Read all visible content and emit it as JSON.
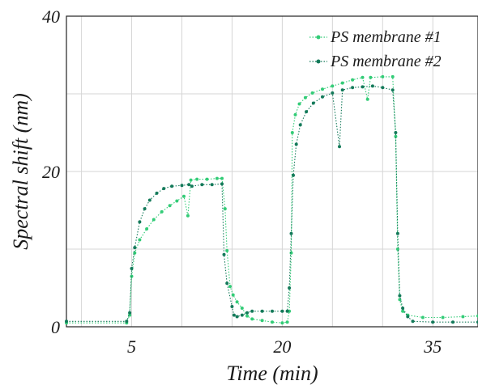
{
  "chart_data": {
    "type": "scatter",
    "xlabel": "Time (min)",
    "ylabel": "Spectral shift (nm)",
    "xlim": [
      -1.5,
      39.5
    ],
    "ylim": [
      0,
      40
    ],
    "xticks": [
      5,
      20,
      35
    ],
    "yticks": [
      0,
      20,
      40
    ],
    "x_tick_labels": [
      "5",
      "20",
      "35"
    ],
    "y_tick_labels": [
      "0",
      "20",
      "40"
    ],
    "grid": true,
    "legend_position": "top-right",
    "series": [
      {
        "name": "PS membrane #1",
        "color": "#33cc77",
        "marker": "dot-dotted-line",
        "points": [
          [
            -1.5,
            0.5
          ],
          [
            4.5,
            0.5
          ],
          [
            4.8,
            1.5
          ],
          [
            5.0,
            6.5
          ],
          [
            5.3,
            9.5
          ],
          [
            5.8,
            11.2
          ],
          [
            6.5,
            12.6
          ],
          [
            7.2,
            13.8
          ],
          [
            8.0,
            14.8
          ],
          [
            8.8,
            15.6
          ],
          [
            9.5,
            16.2
          ],
          [
            10.2,
            16.8
          ],
          [
            10.6,
            14.3
          ],
          [
            10.9,
            18.9
          ],
          [
            11.5,
            19.0
          ],
          [
            12.5,
            19.0
          ],
          [
            13.5,
            19.1
          ],
          [
            14.0,
            19.1
          ],
          [
            14.3,
            15.2
          ],
          [
            14.5,
            9.8
          ],
          [
            14.8,
            5.2
          ],
          [
            15.1,
            4.1
          ],
          [
            15.5,
            3.2
          ],
          [
            16.0,
            2.4
          ],
          [
            16.5,
            1.4
          ],
          [
            17.0,
            1.0
          ],
          [
            18.0,
            0.8
          ],
          [
            19.0,
            0.6
          ],
          [
            20.0,
            0.5
          ],
          [
            20.5,
            0.6
          ],
          [
            20.7,
            2.0
          ],
          [
            20.9,
            9.5
          ],
          [
            21.0,
            25.0
          ],
          [
            21.3,
            27.3
          ],
          [
            21.7,
            28.7
          ],
          [
            22.3,
            29.5
          ],
          [
            23.0,
            30.1
          ],
          [
            24.0,
            30.6
          ],
          [
            25.0,
            31.0
          ],
          [
            26.0,
            31.4
          ],
          [
            27.0,
            31.8
          ],
          [
            28.0,
            32.1
          ],
          [
            28.5,
            29.3
          ],
          [
            28.8,
            32.1
          ],
          [
            30.0,
            32.2
          ],
          [
            31.0,
            32.2
          ],
          [
            31.3,
            24.5
          ],
          [
            31.5,
            10.0
          ],
          [
            31.7,
            3.5
          ],
          [
            32.0,
            2.0
          ],
          [
            32.5,
            1.5
          ],
          [
            34.0,
            1.2
          ],
          [
            36.0,
            1.2
          ],
          [
            38.0,
            1.3
          ],
          [
            39.5,
            1.4
          ]
        ]
      },
      {
        "name": "PS membrane #2",
        "color": "#147a5a",
        "marker": "dot-dotted-line",
        "points": [
          [
            -1.5,
            0.7
          ],
          [
            4.5,
            0.7
          ],
          [
            4.8,
            1.8
          ],
          [
            5.0,
            7.5
          ],
          [
            5.3,
            10.2
          ],
          [
            5.8,
            13.5
          ],
          [
            6.3,
            15.2
          ],
          [
            6.8,
            16.3
          ],
          [
            7.5,
            17.2
          ],
          [
            8.2,
            17.8
          ],
          [
            9.0,
            18.1
          ],
          [
            10.0,
            18.2
          ],
          [
            10.7,
            18.3
          ],
          [
            11.0,
            18.1
          ],
          [
            12.0,
            18.3
          ],
          [
            13.0,
            18.3
          ],
          [
            14.0,
            18.4
          ],
          [
            14.2,
            9.3
          ],
          [
            14.5,
            5.6
          ],
          [
            15.0,
            2.6
          ],
          [
            15.2,
            1.5
          ],
          [
            15.5,
            1.3
          ],
          [
            16.0,
            1.5
          ],
          [
            16.5,
            1.8
          ],
          [
            17.0,
            2.0
          ],
          [
            18.0,
            2.0
          ],
          [
            19.0,
            2.0
          ],
          [
            20.0,
            2.0
          ],
          [
            20.5,
            2.0
          ],
          [
            20.7,
            5.0
          ],
          [
            20.9,
            12.0
          ],
          [
            21.1,
            19.5
          ],
          [
            21.4,
            23.5
          ],
          [
            21.8,
            26.0
          ],
          [
            22.4,
            27.7
          ],
          [
            23.1,
            28.8
          ],
          [
            24.0,
            29.6
          ],
          [
            25.0,
            30.1
          ],
          [
            25.7,
            23.2
          ],
          [
            26.0,
            30.5
          ],
          [
            27.0,
            30.8
          ],
          [
            28.0,
            30.9
          ],
          [
            29.0,
            31.0
          ],
          [
            30.0,
            30.8
          ],
          [
            31.0,
            30.5
          ],
          [
            31.3,
            25.0
          ],
          [
            31.5,
            12.0
          ],
          [
            31.7,
            4.0
          ],
          [
            32.0,
            2.4
          ],
          [
            32.5,
            1.3
          ],
          [
            33.0,
            0.7
          ],
          [
            35.0,
            0.6
          ],
          [
            37.0,
            0.6
          ],
          [
            39.5,
            0.6
          ]
        ]
      }
    ]
  }
}
